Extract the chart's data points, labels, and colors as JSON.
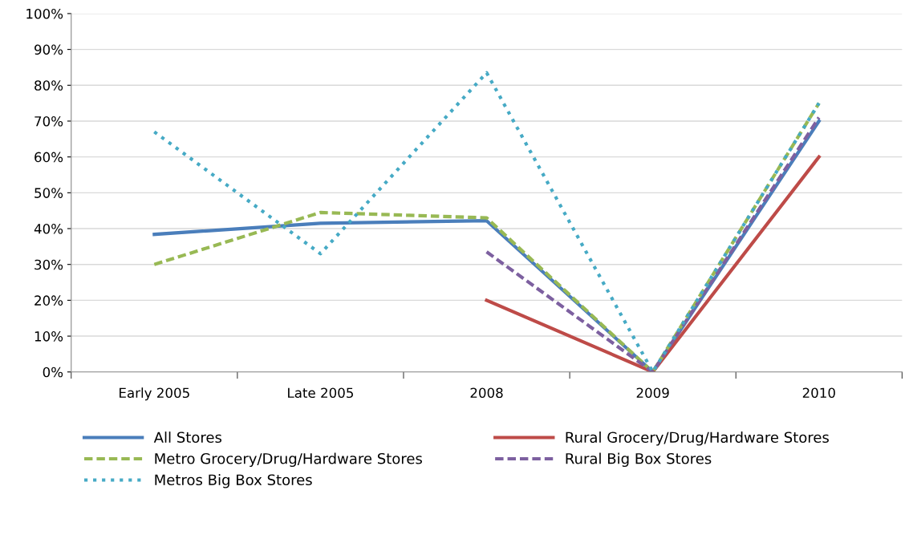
{
  "chart_data": {
    "type": "line",
    "categories": [
      "Early 2005",
      "Late 2005",
      "2008",
      "2009",
      "2010"
    ],
    "series": [
      {
        "name": "All Stores",
        "color": "#4a7ebb",
        "line_style": "solid",
        "values": [
          38.4,
          41.5,
          42.2,
          0,
          70
        ]
      },
      {
        "name": "Rural Grocery/Drug/Hardware Stores",
        "color": "#be4b48",
        "line_style": "solid",
        "values": [
          null,
          null,
          20,
          0,
          60
        ]
      },
      {
        "name": "Metro Grocery/Drug/Hardware Stores",
        "color": "#98b954",
        "line_style": "dashed",
        "values": [
          30,
          44.5,
          43,
          0,
          75
        ]
      },
      {
        "name": "Rural Big Box Stores",
        "color": "#7d60a0",
        "line_style": "dashed",
        "values": [
          null,
          null,
          33.5,
          0,
          71
        ]
      },
      {
        "name": "Metros Big Box Stores",
        "color": "#46aac5",
        "line_style": "dotted",
        "values": [
          67,
          33,
          83.5,
          0,
          75
        ]
      }
    ],
    "ylim": [
      0,
      100
    ],
    "yticks": [
      {
        "value": 0,
        "label": "0%"
      },
      {
        "value": 10,
        "label": "10%"
      },
      {
        "value": 20,
        "label": "20%"
      },
      {
        "value": 30,
        "label": "30%"
      },
      {
        "value": 40,
        "label": "40%"
      },
      {
        "value": 50,
        "label": "50%"
      },
      {
        "value": 60,
        "label": "60%"
      },
      {
        "value": 70,
        "label": "70%"
      },
      {
        "value": 80,
        "label": "80%"
      },
      {
        "value": 90,
        "label": "90%"
      },
      {
        "value": 100,
        "label": "100%"
      }
    ],
    "grid": "y",
    "legend": "bottom",
    "marker": "none"
  }
}
